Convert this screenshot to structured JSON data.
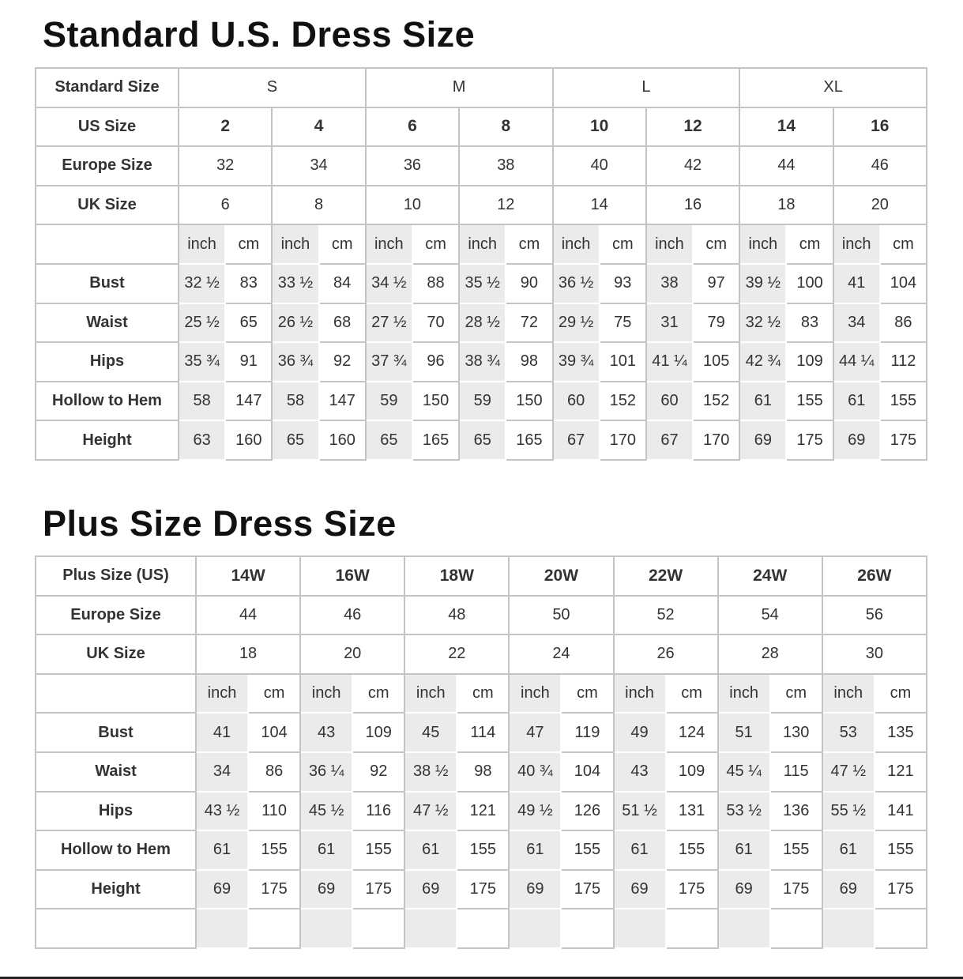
{
  "standard": {
    "title": "Standard U.S. Dress Size",
    "rows": [
      {
        "label": "Standard Size",
        "span": 4,
        "cells": [
          "S",
          "M",
          "L",
          "XL"
        ]
      },
      {
        "label": "US Size",
        "span": 2,
        "bold": true,
        "cells": [
          "2",
          "4",
          "6",
          "8",
          "10",
          "12",
          "14",
          "16"
        ]
      },
      {
        "label": "Europe Size",
        "span": 2,
        "cells": [
          "32",
          "34",
          "36",
          "38",
          "40",
          "42",
          "44",
          "46"
        ]
      },
      {
        "label": "UK Size",
        "span": 2,
        "cells": [
          "6",
          "8",
          "10",
          "12",
          "14",
          "16",
          "18",
          "20"
        ]
      },
      {
        "label": "",
        "span": 1,
        "units": true,
        "cells": [
          "inch",
          "cm",
          "inch",
          "cm",
          "inch",
          "cm",
          "inch",
          "cm",
          "inch",
          "cm",
          "inch",
          "cm",
          "inch",
          "cm",
          "inch",
          "cm"
        ]
      },
      {
        "label": "Bust",
        "span": 1,
        "units": true,
        "cells": [
          "32 ½",
          "83",
          "33 ½",
          "84",
          "34 ½",
          "88",
          "35 ½",
          "90",
          "36 ½",
          "93",
          "38",
          "97",
          "39 ½",
          "100",
          "41",
          "104"
        ]
      },
      {
        "label": "Waist",
        "span": 1,
        "units": true,
        "cells": [
          "25 ½",
          "65",
          "26 ½",
          "68",
          "27 ½",
          "70",
          "28 ½",
          "72",
          "29 ½",
          "75",
          "31",
          "79",
          "32 ½",
          "83",
          "34",
          "86"
        ]
      },
      {
        "label": "Hips",
        "span": 1,
        "units": true,
        "cells": [
          "35 ¾",
          "91",
          "36 ¾",
          "92",
          "37 ¾",
          "96",
          "38 ¾",
          "98",
          "39 ¾",
          "101",
          "41 ¼",
          "105",
          "42 ¾",
          "109",
          "44 ¼",
          "112"
        ]
      },
      {
        "label": "Hollow to Hem",
        "span": 1,
        "units": true,
        "cells": [
          "58",
          "147",
          "58",
          "147",
          "59",
          "150",
          "59",
          "150",
          "60",
          "152",
          "60",
          "152",
          "61",
          "155",
          "61",
          "155"
        ]
      },
      {
        "label": "Height",
        "span": 1,
        "units": true,
        "cells": [
          "63",
          "160",
          "65",
          "160",
          "65",
          "165",
          "65",
          "165",
          "67",
          "170",
          "67",
          "170",
          "69",
          "175",
          "69",
          "175"
        ]
      }
    ]
  },
  "plus": {
    "title": "Plus Size Dress Size",
    "rows": [
      {
        "label": "Plus Size (US)",
        "span": 2,
        "bold": true,
        "cells": [
          "14W",
          "16W",
          "18W",
          "20W",
          "22W",
          "24W",
          "26W"
        ]
      },
      {
        "label": "Europe Size",
        "span": 2,
        "cells": [
          "44",
          "46",
          "48",
          "50",
          "52",
          "54",
          "56"
        ]
      },
      {
        "label": "UK Size",
        "span": 2,
        "cells": [
          "18",
          "20",
          "22",
          "24",
          "26",
          "28",
          "30"
        ]
      },
      {
        "label": "",
        "span": 1,
        "units": true,
        "cells": [
          "inch",
          "cm",
          "inch",
          "cm",
          "inch",
          "cm",
          "inch",
          "cm",
          "inch",
          "cm",
          "inch",
          "cm",
          "inch",
          "cm"
        ]
      },
      {
        "label": "Bust",
        "span": 1,
        "units": true,
        "cells": [
          "41",
          "104",
          "43",
          "109",
          "45",
          "114",
          "47",
          "119",
          "49",
          "124",
          "51",
          "130",
          "53",
          "135"
        ]
      },
      {
        "label": "Waist",
        "span": 1,
        "units": true,
        "cells": [
          "34",
          "86",
          "36 ¼",
          "92",
          "38 ½",
          "98",
          "40 ¾",
          "104",
          "43",
          "109",
          "45 ¼",
          "115",
          "47 ½",
          "121"
        ]
      },
      {
        "label": "Hips",
        "span": 1,
        "units": true,
        "cells": [
          "43 ½",
          "110",
          "45 ½",
          "116",
          "47 ½",
          "121",
          "49 ½",
          "126",
          "51 ½",
          "131",
          "53 ½",
          "136",
          "55 ½",
          "141"
        ]
      },
      {
        "label": "Hollow to Hem",
        "span": 1,
        "units": true,
        "cells": [
          "61",
          "155",
          "61",
          "155",
          "61",
          "155",
          "61",
          "155",
          "61",
          "155",
          "61",
          "155",
          "61",
          "155"
        ]
      },
      {
        "label": "Height",
        "span": 1,
        "units": true,
        "cells": [
          "69",
          "175",
          "69",
          "175",
          "69",
          "175",
          "69",
          "175",
          "69",
          "175",
          "69",
          "175",
          "69",
          "175"
        ]
      },
      {
        "label": "",
        "span": 1,
        "units": true,
        "cells": [
          "",
          "",
          "",
          "",
          "",
          "",
          "",
          "",
          "",
          "",
          "",
          "",
          "",
          ""
        ]
      }
    ]
  }
}
